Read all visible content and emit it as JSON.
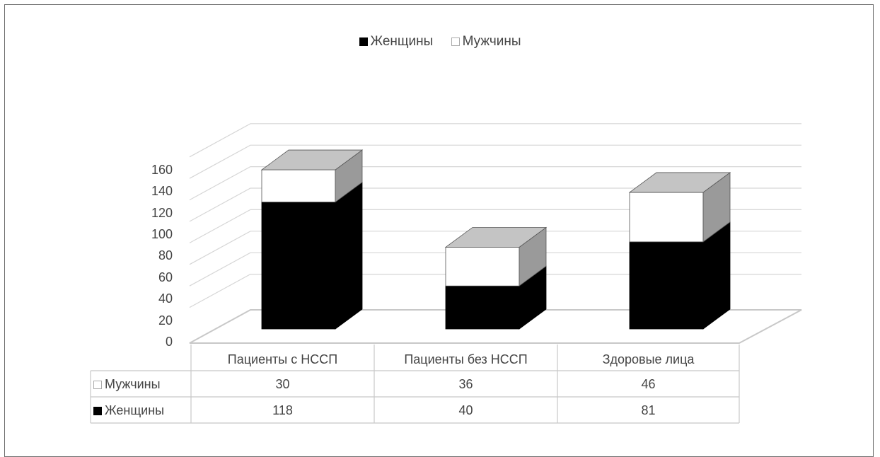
{
  "chart_data": {
    "type": "bar",
    "stacked": true,
    "three_d": true,
    "categories": [
      "Пациенты с НССП",
      "Пациенты без НССП",
      "Здоровые лица"
    ],
    "series": [
      {
        "name": "Женщины",
        "values": [
          118,
          40,
          81
        ],
        "color": "#000000"
      },
      {
        "name": "Мужчины",
        "values": [
          30,
          36,
          46
        ],
        "color": "#ffffff"
      }
    ],
    "title": "",
    "xlabel": "",
    "ylabel": "",
    "ylim": [
      0,
      160
    ],
    "yticks": [
      0,
      20,
      40,
      60,
      80,
      100,
      120,
      140,
      160
    ],
    "ytick_labels": [
      "0",
      "20",
      "40",
      "60",
      "80",
      "100",
      "120",
      "140",
      "160"
    ],
    "legend": {
      "position": "top",
      "entries": [
        "Женщины",
        "Мужчины"
      ]
    },
    "grid": true,
    "data_table": {
      "rows": [
        {
          "label": "Мужчины",
          "values": [
            "30",
            "36",
            "46"
          ]
        },
        {
          "label": "Женщины",
          "values": [
            "118",
            "40",
            "81"
          ]
        }
      ]
    }
  },
  "colors": {
    "top_face": "#c4c4c4",
    "side_face": "#9a9a9a",
    "grid": "#d6d6d6",
    "border": "#c8c8c8"
  }
}
